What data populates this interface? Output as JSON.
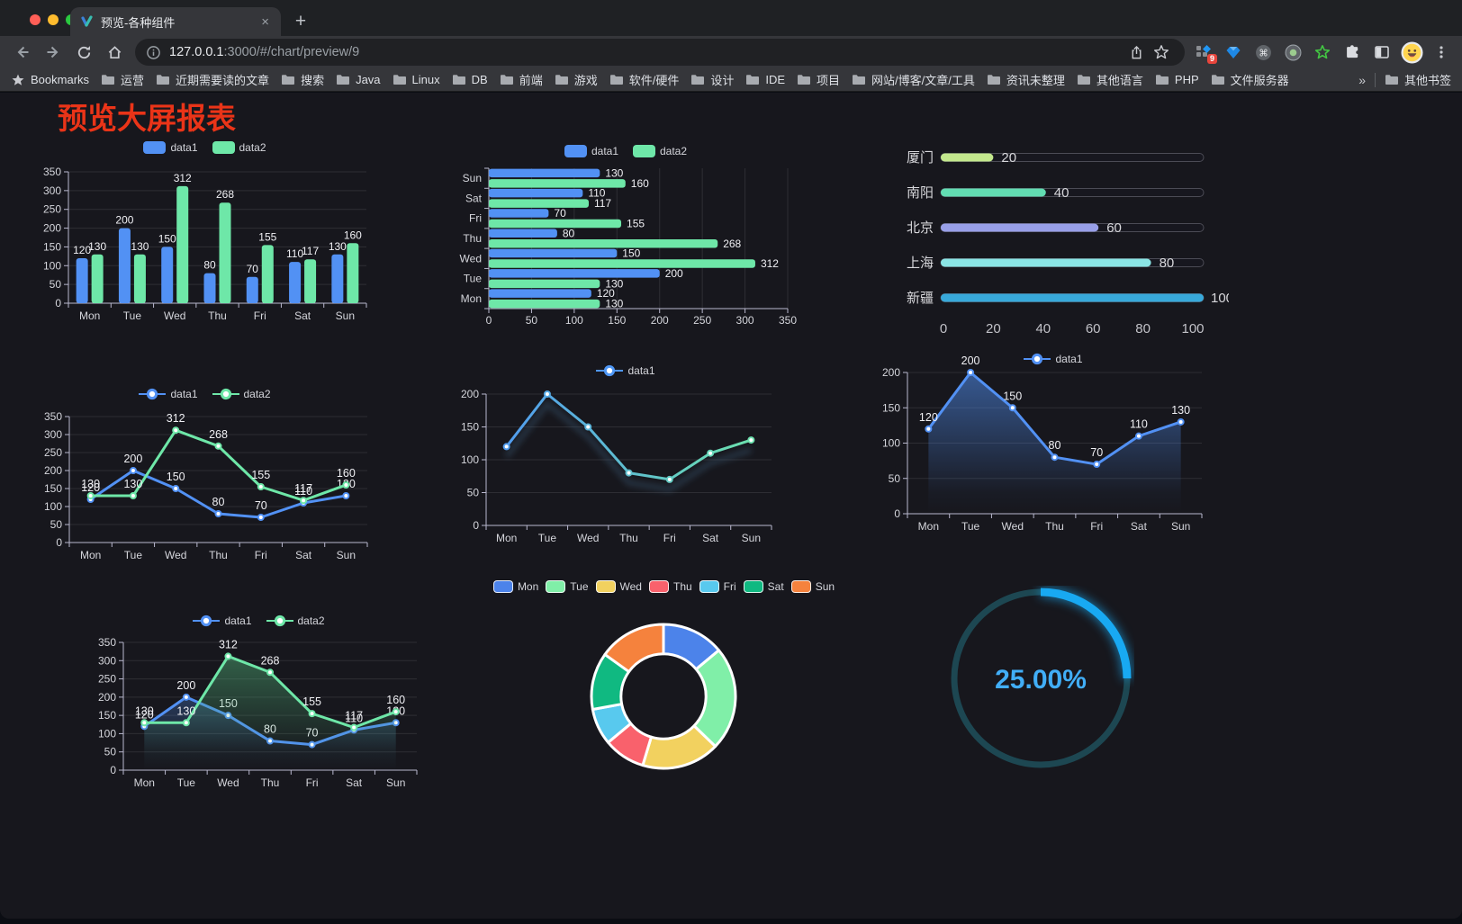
{
  "browser": {
    "tab_title": "预览-各种组件",
    "new_tab_label": "+",
    "close_tab_label": "×",
    "url_host": "127.0.0.1",
    "url_rest": ":3000/#/chart/preview/9",
    "extension_badge": "9",
    "bookmarks_label": "Bookmarks",
    "bookmarks": [
      "运营",
      "近期需要读的文章",
      "搜索",
      "Java",
      "Linux",
      "DB",
      "前端",
      "游戏",
      "软件/硬件",
      "设计",
      "IDE",
      "项目",
      "网站/博客/文章/工具",
      "资讯未整理",
      "其他语言",
      "PHP",
      "文件服务器"
    ],
    "bookmarks_overflow": "»",
    "other_bookmarks_label": "其他书签"
  },
  "page": {
    "title": "预览大屏报表",
    "title_color": "#ea3418"
  },
  "chart_data": [
    {
      "id": "grouped-bar",
      "type": "bar",
      "categories": [
        "Mon",
        "Tue",
        "Wed",
        "Thu",
        "Fri",
        "Sat",
        "Sun"
      ],
      "series": [
        {
          "name": "data1",
          "color": "#5291f4",
          "values": [
            120,
            200,
            150,
            80,
            70,
            110,
            130
          ]
        },
        {
          "name": "data2",
          "color": "#6ee7a8",
          "values": [
            130,
            130,
            312,
            268,
            155,
            117,
            160
          ]
        }
      ],
      "ylim": [
        0,
        350
      ],
      "yticks": [
        0,
        50,
        100,
        150,
        200,
        250,
        300,
        350
      ],
      "legend_position": "top",
      "grid": true,
      "value_labels": true
    },
    {
      "id": "horizontal-bar",
      "type": "hbar",
      "categories": [
        "Mon",
        "Tue",
        "Wed",
        "Thu",
        "Fri",
        "Sat",
        "Sun"
      ],
      "series": [
        {
          "name": "data1",
          "color": "#5291f4",
          "values": [
            120,
            200,
            150,
            80,
            70,
            110,
            130
          ]
        },
        {
          "name": "data2",
          "color": "#6ee7a8",
          "values": [
            130,
            130,
            312,
            268,
            155,
            117,
            160
          ]
        }
      ],
      "xlim": [
        0,
        350
      ],
      "xticks": [
        0,
        50,
        100,
        150,
        200,
        250,
        300,
        350
      ],
      "legend_position": "top",
      "grid": true,
      "value_labels": true
    },
    {
      "id": "progress-bars",
      "type": "progress",
      "items": [
        {
          "label": "厦门",
          "value": 20,
          "color": "#c3e88d"
        },
        {
          "label": "南阳",
          "value": 40,
          "color": "#62ddb2"
        },
        {
          "label": "北京",
          "value": 60,
          "color": "#989fe8"
        },
        {
          "label": "上海",
          "value": 80,
          "color": "#8ae5e5"
        },
        {
          "label": "新疆",
          "value": 100,
          "color": "#38a9da"
        }
      ],
      "xlim": [
        0,
        100
      ],
      "xticks": [
        0,
        20,
        40,
        60,
        80,
        100
      ]
    },
    {
      "id": "two-series-line",
      "type": "line",
      "categories": [
        "Mon",
        "Tue",
        "Wed",
        "Thu",
        "Fri",
        "Sat",
        "Sun"
      ],
      "series": [
        {
          "name": "data1",
          "color": "#5291f4",
          "values": [
            120,
            200,
            150,
            80,
            70,
            110,
            130
          ]
        },
        {
          "name": "data2",
          "color": "#6ee7a8",
          "values": [
            130,
            130,
            312,
            268,
            155,
            117,
            160
          ]
        }
      ],
      "ylim": [
        0,
        350
      ],
      "yticks": [
        0,
        50,
        100,
        150,
        200,
        250,
        300,
        350
      ],
      "legend_position": "top",
      "grid": true,
      "value_labels": true
    },
    {
      "id": "gradient-line",
      "type": "line",
      "categories": [
        "Mon",
        "Tue",
        "Wed",
        "Thu",
        "Fri",
        "Sat",
        "Sun"
      ],
      "series": [
        {
          "name": "data1",
          "gradient": true,
          "color_start": "#4f97f5",
          "color_end": "#6ee7a8",
          "shadow": true,
          "values": [
            120,
            200,
            150,
            80,
            70,
            110,
            130
          ]
        }
      ],
      "ylim": [
        0,
        200
      ],
      "yticks": [
        0,
        50,
        100,
        150,
        200
      ],
      "legend_position": "top",
      "grid": true,
      "value_labels": false
    },
    {
      "id": "area-line",
      "type": "line",
      "categories": [
        "Mon",
        "Tue",
        "Wed",
        "Thu",
        "Fri",
        "Sat",
        "Sun"
      ],
      "series": [
        {
          "name": "data1",
          "color": "#5291f4",
          "area": true,
          "values": [
            120,
            200,
            150,
            80,
            70,
            110,
            130
          ]
        }
      ],
      "ylim": [
        0,
        200
      ],
      "yticks": [
        0,
        50,
        100,
        150,
        200
      ],
      "legend_position": "top",
      "grid": true,
      "value_labels": true
    },
    {
      "id": "two-series-area",
      "type": "line",
      "categories": [
        "Mon",
        "Tue",
        "Wed",
        "Thu",
        "Fri",
        "Sat",
        "Sun"
      ],
      "series": [
        {
          "name": "data1",
          "color": "#5291f4",
          "area": true,
          "values": [
            120,
            200,
            150,
            80,
            70,
            110,
            130
          ]
        },
        {
          "name": "data2",
          "color": "#6ee7a8",
          "area": true,
          "area_color": "#4fae76",
          "values": [
            130,
            130,
            312,
            268,
            155,
            117,
            160
          ]
        }
      ],
      "ylim": [
        0,
        350
      ],
      "yticks": [
        0,
        50,
        100,
        150,
        200,
        250,
        300,
        350
      ],
      "legend_position": "top",
      "grid": true,
      "value_labels": true
    },
    {
      "id": "donut",
      "type": "pie",
      "categories": [
        "Mon",
        "Tue",
        "Wed",
        "Thu",
        "Fri",
        "Sat",
        "Sun"
      ],
      "values": [
        120,
        200,
        150,
        80,
        70,
        110,
        130
      ],
      "colors": [
        "#4c83ea",
        "#80efa8",
        "#f2d15f",
        "#f9616c",
        "#58c9ee",
        "#10b981",
        "#f5823d"
      ],
      "inner_radius_ratio": 0.59,
      "border_color": "#ffffff",
      "legend_position": "top"
    },
    {
      "id": "gauge",
      "type": "gauge",
      "percent": 25,
      "label": "25.00%",
      "track_color": "#1d4752",
      "progress_color": "#18a9f2",
      "text_color": "#41aef7"
    }
  ]
}
